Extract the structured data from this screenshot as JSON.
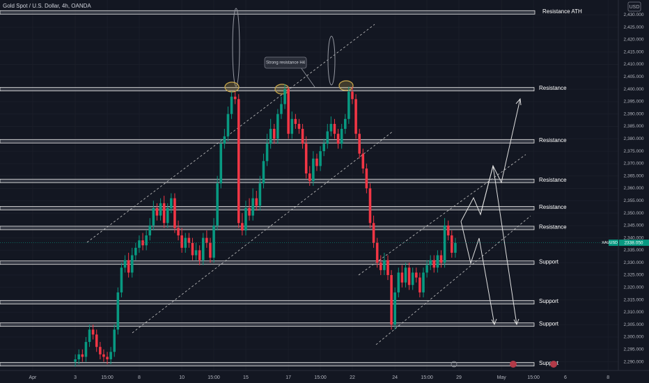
{
  "chart_data": {
    "type": "candlestick",
    "title": "Gold Spot / U.S. Dollar, 4h, OANDA",
    "currency": "USD",
    "annotation": "Strong resistance H4",
    "last_price": {
      "symbol": "XAUUSD",
      "value": 2338.05,
      "label": "2338.050"
    },
    "up_color": "#089981",
    "down_color": "#f23645",
    "xlim": [
      -9.2,
      164.9
    ],
    "xticks": [
      {
        "value": 0,
        "label": "Apr"
      },
      {
        "value": 12,
        "label": "3"
      },
      {
        "value": 21,
        "label": "15:00"
      },
      {
        "value": 30,
        "label": "8"
      },
      {
        "value": 42,
        "label": "10"
      },
      {
        "value": 51,
        "label": "15:00"
      },
      {
        "value": 60,
        "label": "15"
      },
      {
        "value": 72,
        "label": "17"
      },
      {
        "value": 81,
        "label": "15:00"
      },
      {
        "value": 90,
        "label": "22"
      },
      {
        "value": 102,
        "label": "24"
      },
      {
        "value": 111,
        "label": "15:00"
      },
      {
        "value": 120,
        "label": "29"
      },
      {
        "value": 132,
        "label": "May"
      },
      {
        "value": 141,
        "label": "15:00"
      },
      {
        "value": 150,
        "label": "6"
      },
      {
        "value": 162,
        "label": "8"
      }
    ],
    "ylim": [
      2286.5,
      2436
    ],
    "yticks": [
      {
        "value": 2290,
        "label": "2,290.000"
      },
      {
        "value": 2295,
        "label": "2,295.000"
      },
      {
        "value": 2300,
        "label": "2,300.000"
      },
      {
        "value": 2305,
        "label": "2,305.000"
      },
      {
        "value": 2310,
        "label": "2,310.000"
      },
      {
        "value": 2315,
        "label": "2,315.000"
      },
      {
        "value": 2320,
        "label": "2,320.000"
      },
      {
        "value": 2325,
        "label": "2,325.000"
      },
      {
        "value": 2330,
        "label": "2,330.000"
      },
      {
        "value": 2335,
        "label": "2,335.000"
      },
      {
        "value": 2340,
        "label": "2,340.000"
      },
      {
        "value": 2345,
        "label": "2,345.000"
      },
      {
        "value": 2350,
        "label": "2,350.000"
      },
      {
        "value": 2355,
        "label": "2,355.000"
      },
      {
        "value": 2360,
        "label": "2,360.000"
      },
      {
        "value": 2365,
        "label": "2,365.000"
      },
      {
        "value": 2370,
        "label": "2,370.000"
      },
      {
        "value": 2375,
        "label": "2,375.000"
      },
      {
        "value": 2380,
        "label": "2,380.000"
      },
      {
        "value": 2385,
        "label": "2,385.000"
      },
      {
        "value": 2390,
        "label": "2,390.000"
      },
      {
        "value": 2395,
        "label": "2,395.000"
      },
      {
        "value": 2400,
        "label": "2,400.000"
      },
      {
        "value": 2405,
        "label": "2,405.000"
      },
      {
        "value": 2410,
        "label": "2,410.000"
      },
      {
        "value": 2415,
        "label": "2,415.000"
      },
      {
        "value": 2420,
        "label": "2,420.000"
      },
      {
        "value": 2425,
        "label": "2,425.000"
      },
      {
        "value": 2430,
        "label": "2,430.000"
      }
    ],
    "levels": [
      {
        "name": "Resistance ATH",
        "value": 2431
      },
      {
        "name": "Resistance",
        "value": 2400
      },
      {
        "name": "Resistance",
        "value": 2379
      },
      {
        "name": "Resistance",
        "value": 2363
      },
      {
        "name": "Resistance",
        "value": 2352
      },
      {
        "name": "Resistance",
        "value": 2344
      },
      {
        "name": "Support",
        "value": 2330
      },
      {
        "name": "Support",
        "value": 2314
      },
      {
        "name": "Support",
        "value": 2305
      },
      {
        "name": "Support",
        "value": 2289
      }
    ],
    "x": [
      12,
      13,
      14,
      15,
      16,
      17,
      18,
      19,
      20,
      21,
      22,
      23,
      24,
      25,
      26,
      27,
      28,
      29,
      30,
      31,
      32,
      33,
      34,
      35,
      36,
      37,
      38,
      39,
      40,
      41,
      42,
      43,
      44,
      45,
      46,
      47,
      48,
      49,
      50,
      51,
      52,
      53,
      54,
      55,
      56,
      57,
      58,
      59,
      60,
      61,
      62,
      63,
      64,
      65,
      66,
      67,
      68,
      69,
      70,
      71,
      72,
      73,
      74,
      75,
      76,
      77,
      78,
      79,
      80,
      81,
      82,
      83,
      84,
      85,
      86,
      87,
      88,
      89,
      90,
      91,
      92,
      93,
      94,
      95,
      96,
      97,
      98,
      99,
      100,
      101,
      102,
      103,
      104,
      105,
      106,
      107,
      108,
      109,
      110,
      111,
      112,
      113,
      114,
      115,
      116,
      117,
      118,
      119
    ],
    "open": [
      2290,
      2291,
      2293,
      2292,
      2298,
      2303,
      2301,
      2296,
      2293,
      2292,
      2291,
      2294,
      2303,
      2318,
      2328,
      2331,
      2326,
      2333,
      2336,
      2339,
      2337,
      2341,
      2345,
      2352,
      2349,
      2354,
      2346,
      2352,
      2356,
      2344,
      2341,
      2336,
      2340,
      2338,
      2333,
      2335,
      2331,
      2340,
      2338,
      2332,
      2345,
      2362,
      2378,
      2381,
      2390,
      2397,
      2396,
      2346,
      2343,
      2352,
      2349,
      2356,
      2353,
      2362,
      2371,
      2378,
      2384,
      2380,
      2390,
      2394,
      2400,
      2382,
      2388,
      2386,
      2384,
      2378,
      2366,
      2363,
      2372,
      2369,
      2375,
      2378,
      2383,
      2386,
      2382,
      2378,
      2384,
      2388,
      2399,
      2396,
      2382,
      2374,
      2368,
      2360,
      2346,
      2338,
      2330,
      2327,
      2331,
      2325,
      2305,
      2318,
      2326,
      2322,
      2328,
      2321,
      2326,
      2324,
      2318,
      2326,
      2329,
      2331,
      2328,
      2333,
      2330,
      2345,
      2341,
      2334
    ],
    "high": [
      2293,
      2295,
      2295,
      2300,
      2305,
      2305,
      2303,
      2298,
      2295,
      2294,
      2296,
      2305,
      2320,
      2330,
      2333,
      2334,
      2336,
      2338,
      2341,
      2342,
      2343,
      2348,
      2355,
      2354,
      2356,
      2357,
      2354,
      2358,
      2358,
      2347,
      2344,
      2342,
      2342,
      2340,
      2338,
      2337,
      2342,
      2343,
      2340,
      2348,
      2365,
      2380,
      2384,
      2393,
      2399,
      2399,
      2398,
      2350,
      2355,
      2356,
      2360,
      2359,
      2365,
      2374,
      2382,
      2388,
      2386,
      2392,
      2397,
      2402,
      2401,
      2391,
      2390,
      2388,
      2386,
      2381,
      2369,
      2375,
      2374,
      2377,
      2380,
      2386,
      2389,
      2388,
      2384,
      2386,
      2390,
      2401,
      2401,
      2398,
      2384,
      2376,
      2370,
      2362,
      2349,
      2340,
      2333,
      2334,
      2333,
      2327,
      2320,
      2328,
      2329,
      2330,
      2330,
      2328,
      2328,
      2326,
      2328,
      2331,
      2333,
      2333,
      2335,
      2335,
      2348,
      2347,
      2343,
      2340
    ],
    "low": [
      2288,
      2289,
      2290,
      2290,
      2296,
      2299,
      2294,
      2291,
      2290,
      2289,
      2289,
      2292,
      2301,
      2316,
      2326,
      2324,
      2324,
      2331,
      2334,
      2335,
      2335,
      2339,
      2343,
      2347,
      2347,
      2344,
      2344,
      2350,
      2342,
      2339,
      2334,
      2334,
      2336,
      2331,
      2331,
      2329,
      2329,
      2336,
      2330,
      2330,
      2343,
      2360,
      2376,
      2379,
      2388,
      2394,
      2344,
      2341,
      2341,
      2347,
      2347,
      2351,
      2351,
      2360,
      2369,
      2376,
      2378,
      2378,
      2388,
      2392,
      2380,
      2380,
      2384,
      2382,
      2376,
      2364,
      2361,
      2361,
      2367,
      2367,
      2373,
      2376,
      2381,
      2380,
      2376,
      2376,
      2382,
      2386,
      2394,
      2380,
      2372,
      2366,
      2358,
      2344,
      2336,
      2328,
      2325,
      2325,
      2323,
      2303,
      2303,
      2316,
      2320,
      2320,
      2319,
      2319,
      2322,
      2316,
      2316,
      2324,
      2327,
      2326,
      2326,
      2328,
      2328,
      2339,
      2332,
      2332
    ],
    "close": [
      2291,
      2293,
      2292,
      2298,
      2303,
      2301,
      2296,
      2293,
      2292,
      2291,
      2294,
      2303,
      2318,
      2328,
      2331,
      2326,
      2333,
      2336,
      2339,
      2337,
      2341,
      2345,
      2352,
      2349,
      2354,
      2346,
      2352,
      2356,
      2344,
      2341,
      2336,
      2340,
      2338,
      2333,
      2335,
      2331,
      2340,
      2338,
      2332,
      2345,
      2362,
      2378,
      2381,
      2390,
      2397,
      2396,
      2346,
      2343,
      2352,
      2349,
      2356,
      2353,
      2362,
      2371,
      2378,
      2384,
      2380,
      2390,
      2394,
      2400,
      2382,
      2388,
      2386,
      2384,
      2378,
      2366,
      2363,
      2372,
      2369,
      2375,
      2378,
      2383,
      2386,
      2382,
      2378,
      2384,
      2388,
      2399,
      2396,
      2382,
      2374,
      2368,
      2360,
      2346,
      2338,
      2330,
      2327,
      2331,
      2325,
      2305,
      2318,
      2326,
      2322,
      2328,
      2321,
      2326,
      2324,
      2318,
      2326,
      2329,
      2331,
      2328,
      2333,
      2330,
      2345,
      2341,
      2334,
      2338
    ]
  }
}
